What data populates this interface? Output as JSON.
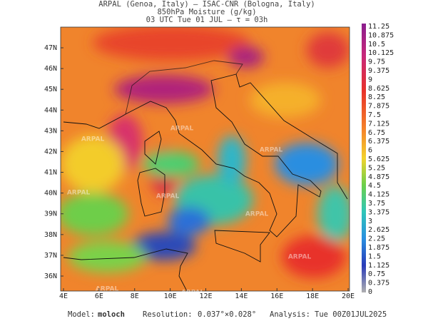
{
  "header": {
    "line1": "ARPAL (Genoa, Italy)  –  ISAC-CNR (Bologna, Italy)",
    "line2": "850hPa Moisture (g/kg)",
    "line3": "03 UTC Tue 01 JUL  –  τ = 03h"
  },
  "axes": {
    "lat_labels": [
      "47N",
      "46N",
      "45N",
      "44N",
      "43N",
      "42N",
      "41N",
      "40N",
      "39N",
      "38N",
      "37N",
      "36N"
    ],
    "lon_labels": [
      "4E",
      "6E",
      "8E",
      "10E",
      "12E",
      "14E",
      "16E",
      "18E",
      "20E"
    ]
  },
  "colorbar": {
    "labels": [
      11.25,
      10.875,
      10.5,
      10.125,
      9.75,
      9.375,
      9,
      8.625,
      8.25,
      7.875,
      7.5,
      7.125,
      6.75,
      6.375,
      6,
      5.625,
      5.25,
      4.875,
      4.5,
      4.125,
      3.75,
      3.375,
      3,
      2.625,
      2.25,
      1.875,
      1.5,
      1.125,
      0.75,
      0.375,
      0
    ]
  },
  "watermark": "ARPAL",
  "footer": {
    "model_label": "Model:",
    "model": "moloch",
    "resolution_label": "Resolution:",
    "resolution": "0.037°×0.028°",
    "analysis_label": "Analysis:",
    "analysis": "Tue 00Z01JUL2025"
  }
}
